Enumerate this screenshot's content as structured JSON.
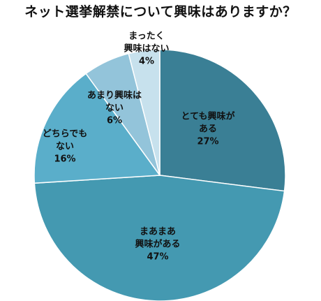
{
  "chart_data": {
    "type": "pie",
    "title": "ネット選挙解禁について興味はありますか？",
    "slices": [
      {
        "label_lines": [
          "とても興味が",
          "ある"
        ],
        "value_text": "27%",
        "value": 27,
        "color": "#3a7f95"
      },
      {
        "label_lines": [
          "まあまあ",
          "興味がある"
        ],
        "value_text": "47%",
        "value": 47,
        "color": "#4499b1"
      },
      {
        "label_lines": [
          "どちらでも",
          "ない"
        ],
        "value_text": "16%",
        "value": 16,
        "color": "#5aaeca"
      },
      {
        "label_lines": [
          "あまり興味は",
          "ない"
        ],
        "value_text": "6%",
        "value": 6,
        "color": "#93c4da"
      },
      {
        "label_lines": [
          "まったく",
          "興味はない"
        ],
        "value_text": "4%",
        "value": 4,
        "color": "#c7e1ed"
      }
    ]
  }
}
